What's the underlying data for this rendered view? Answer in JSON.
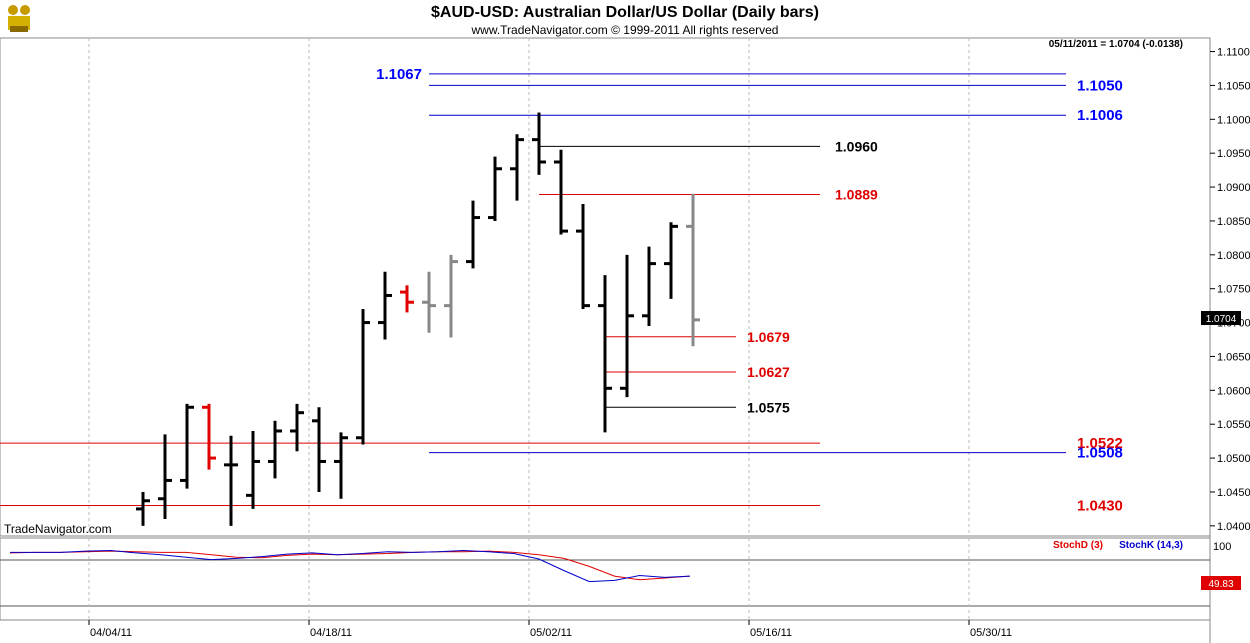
{
  "chart_data": {
    "type": "ohlc",
    "title": "$AUD-USD:  Australian Dollar/US Dollar  (Daily bars)",
    "subtitle": "www.TradeNavigator.com © 1999-2011 All rights reserved",
    "last_quote_text": "05/11/2011 = 1.0704 (-0.0138)",
    "last_price_label": "1.0704",
    "watermark": "TradeNavigator.com",
    "y_range": [
      1.0385,
      1.112
    ],
    "y_ticks": [
      "1.0400",
      "1.0450",
      "1.0500",
      "1.0550",
      "1.0600",
      "1.0650",
      "1.0700",
      "1.0750",
      "1.0800",
      "1.0850",
      "1.0900",
      "1.0950",
      "1.1000",
      "1.1050",
      "1.1100"
    ],
    "x_labels": [
      "04/04/11",
      "04/18/11",
      "05/02/11",
      "05/16/11",
      "05/30/11"
    ],
    "bars": [
      {
        "o": 1.0425,
        "h": 1.045,
        "l": 1.04,
        "c": 1.0437,
        "color": "#000000"
      },
      {
        "o": 1.044,
        "h": 1.0535,
        "l": 1.041,
        "c": 1.0467,
        "color": "#000000"
      },
      {
        "o": 1.0467,
        "h": 1.058,
        "l": 1.0455,
        "c": 1.0575,
        "color": "#000000"
      },
      {
        "o": 1.0575,
        "h": 1.058,
        "l": 1.0483,
        "c": 1.05,
        "color": "#e00000"
      },
      {
        "o": 1.049,
        "h": 1.0533,
        "l": 1.04,
        "c": 1.049,
        "color": "#000000"
      },
      {
        "o": 1.0445,
        "h": 1.054,
        "l": 1.0425,
        "c": 1.0495,
        "color": "#000000"
      },
      {
        "o": 1.0495,
        "h": 1.0555,
        "l": 1.047,
        "c": 1.054,
        "color": "#000000"
      },
      {
        "o": 1.054,
        "h": 1.058,
        "l": 1.051,
        "c": 1.0567,
        "color": "#000000"
      },
      {
        "o": 1.0555,
        "h": 1.0575,
        "l": 1.045,
        "c": 1.0495,
        "color": "#000000"
      },
      {
        "o": 1.0495,
        "h": 1.0538,
        "l": 1.044,
        "c": 1.053,
        "color": "#000000"
      },
      {
        "o": 1.053,
        "h": 1.072,
        "l": 1.052,
        "c": 1.07,
        "color": "#000000"
      },
      {
        "o": 1.07,
        "h": 1.0775,
        "l": 1.0675,
        "c": 1.074,
        "color": "#000000"
      },
      {
        "o": 1.0745,
        "h": 1.0755,
        "l": 1.0715,
        "c": 1.073,
        "color": "#e00000"
      },
      {
        "o": 1.073,
        "h": 1.0775,
        "l": 1.0685,
        "c": 1.0725,
        "color": "#888888"
      },
      {
        "o": 1.0725,
        "h": 1.08,
        "l": 1.0678,
        "c": 1.079,
        "color": "#888888"
      },
      {
        "o": 1.079,
        "h": 1.088,
        "l": 1.078,
        "c": 1.0855,
        "color": "#000000"
      },
      {
        "o": 1.0855,
        "h": 1.0945,
        "l": 1.085,
        "c": 1.0927,
        "color": "#000000"
      },
      {
        "o": 1.0927,
        "h": 1.0978,
        "l": 1.088,
        "c": 1.097,
        "color": "#000000"
      },
      {
        "o": 1.097,
        "h": 1.101,
        "l": 1.0918,
        "c": 1.0937,
        "color": "#000000"
      },
      {
        "o": 1.0937,
        "h": 1.0955,
        "l": 1.083,
        "c": 1.0835,
        "color": "#000000"
      },
      {
        "o": 1.0835,
        "h": 1.0875,
        "l": 1.072,
        "c": 1.0725,
        "color": "#000000"
      },
      {
        "o": 1.0725,
        "h": 1.077,
        "l": 1.0538,
        "c": 1.0603,
        "color": "#000000"
      },
      {
        "o": 1.0603,
        "h": 1.08,
        "l": 1.059,
        "c": 1.071,
        "color": "#000000"
      },
      {
        "o": 1.071,
        "h": 1.0812,
        "l": 1.0695,
        "c": 1.0787,
        "color": "#000000"
      },
      {
        "o": 1.0787,
        "h": 1.0848,
        "l": 1.0735,
        "c": 1.0842,
        "color": "#000000"
      },
      {
        "o": 1.0842,
        "h": 1.089,
        "l": 1.0665,
        "c": 1.0704,
        "color": "#888888"
      }
    ],
    "levels": [
      {
        "label": "1.1067",
        "color": "#0000cc",
        "text_color": "#0000ff",
        "value": 1.1067,
        "span": "right",
        "label_side": "left"
      },
      {
        "label": "1.1050",
        "color": "#0000cc",
        "text_color": "#0000ff",
        "value": 1.105,
        "span": "right",
        "label_side": "right"
      },
      {
        "label": "1.1006",
        "color": "#0000cc",
        "text_color": "#0000ff",
        "value": 1.1006,
        "span": "right",
        "label_side": "right"
      },
      {
        "label": "1.0960",
        "color": "#000000",
        "text_color": "#000000",
        "value": 1.096,
        "span": "right",
        "label_side": "right"
      },
      {
        "label": "1.0889",
        "color": "#e00000",
        "text_color": "#e00000",
        "value": 1.0889,
        "span": "right",
        "label_side": "right"
      },
      {
        "label": "1.0679",
        "color": "#e00000",
        "text_color": "#e00000",
        "value": 1.0679,
        "span": "right",
        "label_side": "right"
      },
      {
        "label": "1.0627",
        "color": "#e00000",
        "text_color": "#e00000",
        "value": 1.0627,
        "span": "right",
        "label_side": "right"
      },
      {
        "label": "1.0575",
        "color": "#000000",
        "text_color": "#000000",
        "value": 1.0575,
        "span": "right",
        "label_side": "right"
      },
      {
        "label": "1.0522",
        "color": "#e00000",
        "text_color": "#e00000",
        "value": 1.0522,
        "span": "full",
        "label_side": "right"
      },
      {
        "label": "1.0508",
        "color": "#0000cc",
        "text_color": "#0000ff",
        "value": 1.0508,
        "span": "right",
        "label_side": "right"
      },
      {
        "label": "1.0430",
        "color": "#e00000",
        "text_color": "#e00000",
        "value": 1.043,
        "span": "full",
        "label_side": "right"
      }
    ],
    "stoch": {
      "legend_d": "StochD (3)",
      "legend_k": "StochK (14,3)",
      "value_label": "49.83",
      "axis_label": "100",
      "y_range": [
        0,
        100
      ],
      "d": [
        87,
        88,
        88,
        89,
        90,
        89,
        88,
        88,
        84,
        80,
        79,
        83,
        85,
        84,
        85,
        86,
        88,
        89,
        89,
        90,
        88,
        84,
        78,
        65,
        49,
        43,
        46,
        49
      ],
      "k": [
        88,
        88,
        88,
        90,
        91,
        87,
        84,
        80,
        76,
        78,
        81,
        85,
        87,
        84,
        86,
        89,
        88,
        89,
        91,
        89,
        86,
        77,
        58,
        40,
        42,
        50,
        47,
        49
      ]
    }
  }
}
